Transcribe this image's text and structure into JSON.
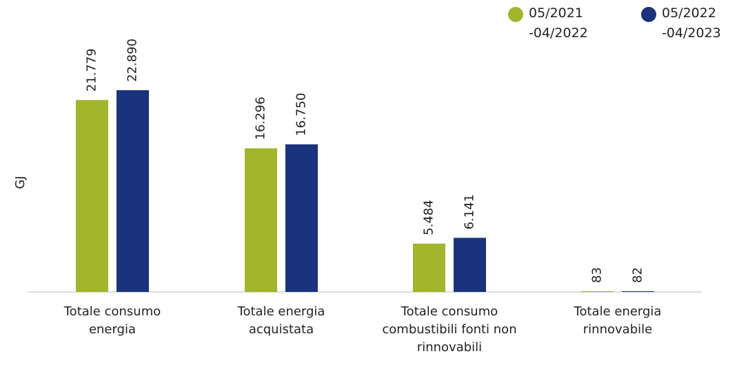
{
  "chart_data": {
    "type": "bar",
    "y_label": "GJ",
    "categories": [
      "Totale consumo energia",
      "Totale energia acquistata",
      "Totale consumo combustibili fonti non rinnovabili",
      "Totale energia rinnovabile"
    ],
    "series": [
      {
        "name": "05/2021 -04/2022",
        "color": "#a3b52c",
        "values": [
          21779,
          16296,
          5484,
          83
        ],
        "value_labels": [
          "21.779",
          "16.296",
          "5.484",
          "83"
        ]
      },
      {
        "name": "05/2022 -04/2023",
        "color": "#1b327d",
        "values": [
          22890,
          16750,
          6141,
          82
        ],
        "value_labels": [
          "22.890",
          "16.750",
          "6.141",
          "82"
        ]
      }
    ],
    "ylim": [
      0,
      25000
    ]
  }
}
